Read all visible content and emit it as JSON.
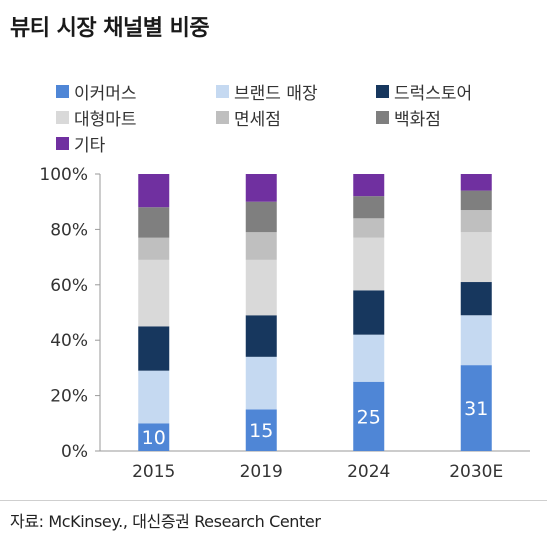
{
  "title": "뷰티 시장 채널별 비중",
  "source": "자료: McKinsey., 대신증권 Research Center",
  "chart_data": {
    "type": "bar",
    "stacked": true,
    "categories": [
      "2015",
      "2019",
      "2024",
      "2030E"
    ],
    "ylim": [
      0,
      100
    ],
    "yticks": [
      "0%",
      "20%",
      "40%",
      "60%",
      "80%",
      "100%"
    ],
    "ytick_values": [
      0,
      20,
      40,
      60,
      80,
      100
    ],
    "legend_position": "top",
    "series": [
      {
        "name": "이커머스",
        "color": "#4f86d6",
        "values": [
          10,
          15,
          25,
          31
        ],
        "labels": [
          "10",
          "15",
          "25",
          "31"
        ]
      },
      {
        "name": "브랜드 매장",
        "color": "#c5d9f1",
        "values": [
          19,
          19,
          17,
          18
        ]
      },
      {
        "name": "드럭스토어",
        "color": "#17375e",
        "values": [
          16,
          15,
          16,
          12
        ]
      },
      {
        "name": "대형마트",
        "color": "#d9d9d9",
        "values": [
          24,
          20,
          19,
          18
        ]
      },
      {
        "name": "면세점",
        "color": "#bfbfbf",
        "values": [
          8,
          10,
          7,
          8
        ]
      },
      {
        "name": "백화점",
        "color": "#7f7f7f",
        "values": [
          11,
          11,
          8,
          7
        ]
      },
      {
        "name": "기타",
        "color": "#7030a0",
        "values": [
          12,
          10,
          8,
          6
        ]
      }
    ]
  }
}
